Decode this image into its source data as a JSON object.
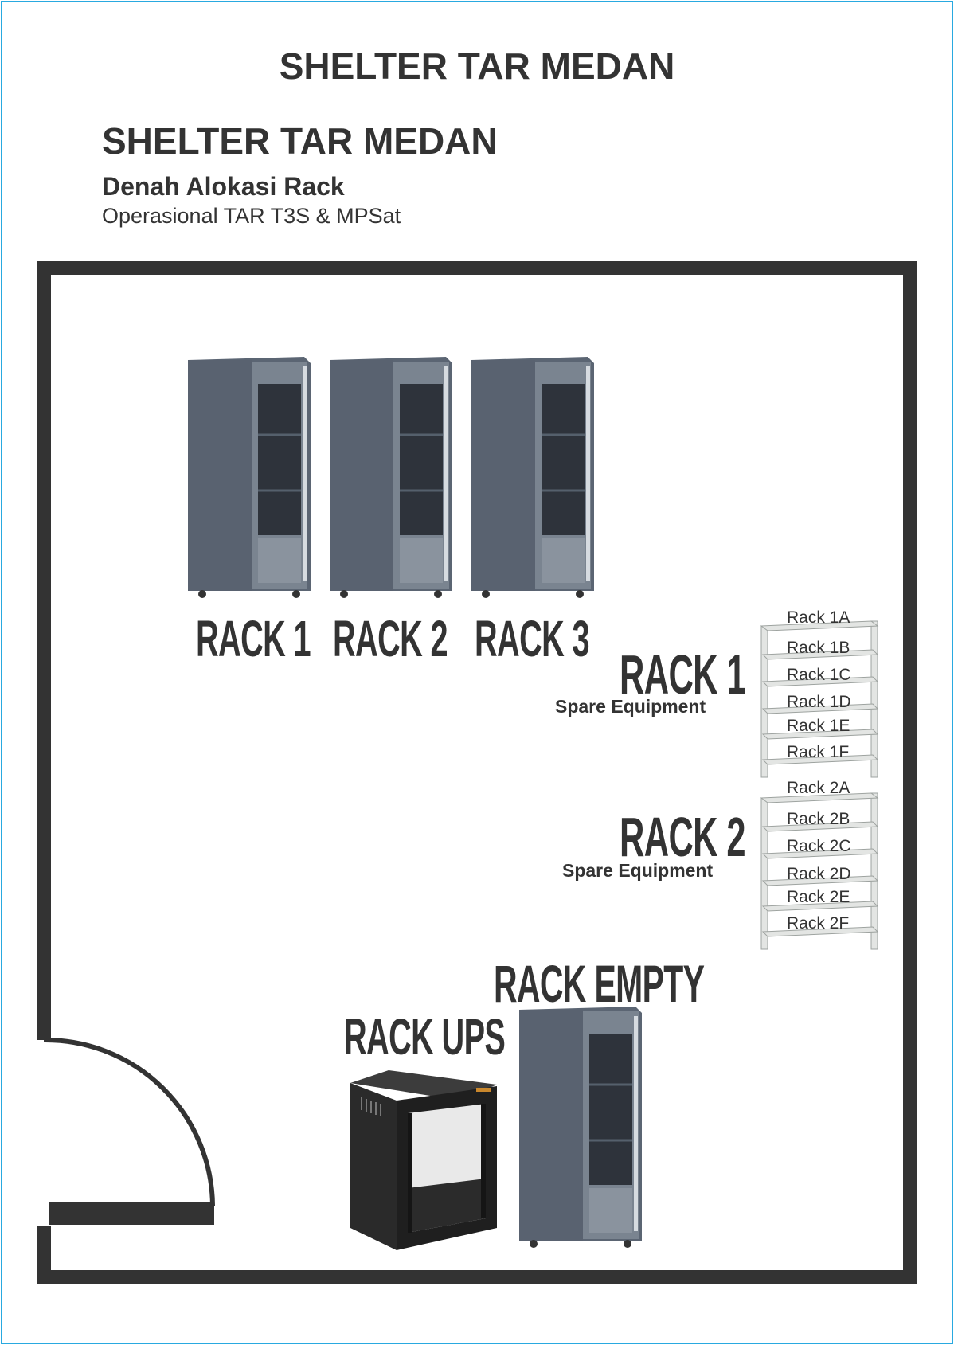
{
  "header": {
    "title": "SHELTER TAR MEDAN",
    "subtitle": "SHELTER TAR MEDAN",
    "heading": "Denah Alokasi Rack",
    "caption": "Operasional TAR T3S & MPSat"
  },
  "racks": [
    {
      "label": "RACK 1"
    },
    {
      "label": "RACK 2"
    },
    {
      "label": "RACK 3"
    }
  ],
  "spare_racks": [
    {
      "label": "RACK 1",
      "caption": "Spare Equipment",
      "shelves": [
        "Rack 1A",
        "Rack 1B",
        "Rack 1C",
        "Rack 1D",
        "Rack 1E",
        "Rack 1F"
      ]
    },
    {
      "label": "RACK 2",
      "caption": "Spare Equipment",
      "shelves": [
        "Rack 2A",
        "Rack 2B",
        "Rack 2C",
        "Rack 2D",
        "Rack 2E",
        "Rack 2F"
      ]
    }
  ],
  "bottom": {
    "empty_label": "RACK EMPTY",
    "ups_label": "RACK UPS"
  },
  "colors": {
    "wall": "#333333",
    "cabinet": "#5b6573",
    "border": "#29a9e0",
    "shelf": "#e3e5e3"
  }
}
